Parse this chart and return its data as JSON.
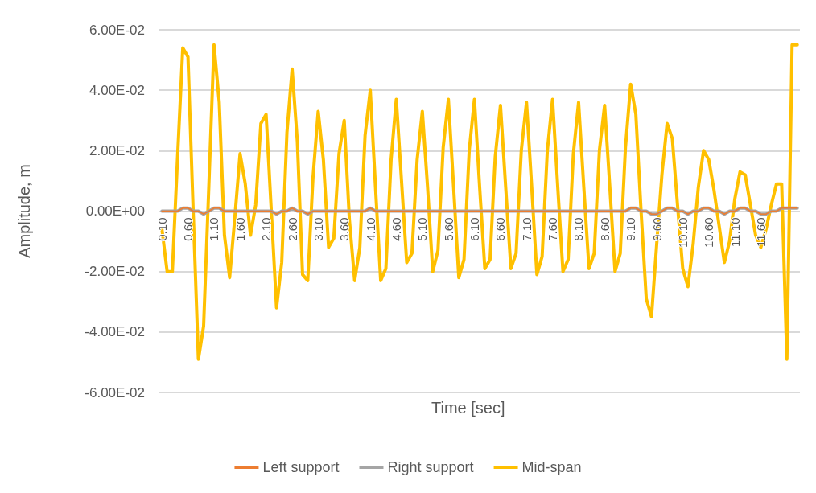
{
  "chart_data": {
    "type": "line",
    "xlabel": "Time [sec]",
    "ylabel": "Amplitude, m",
    "categories": [
      "0.10",
      null,
      null,
      null,
      null,
      "0.60",
      null,
      null,
      null,
      null,
      "1.10",
      null,
      null,
      null,
      null,
      "1.60",
      null,
      null,
      null,
      null,
      "2.10",
      null,
      null,
      null,
      null,
      "2.60",
      null,
      null,
      null,
      null,
      "3.10",
      null,
      null,
      null,
      null,
      "3.60",
      null,
      null,
      null,
      null,
      "4.10",
      null,
      null,
      null,
      null,
      "4.60",
      null,
      null,
      null,
      null,
      "5.10",
      null,
      null,
      null,
      null,
      "5.60",
      null,
      null,
      null,
      null,
      "6.10",
      null,
      null,
      null,
      null,
      "6.60",
      null,
      null,
      null,
      null,
      "7.10",
      null,
      null,
      null,
      null,
      "7.60",
      null,
      null,
      null,
      null,
      "8.10",
      null,
      null,
      null,
      null,
      "8.60",
      null,
      null,
      null,
      null,
      "9.10",
      null,
      null,
      null,
      null,
      "9.60",
      null,
      null,
      null,
      null,
      "10.10",
      null,
      null,
      null,
      null,
      "10.60",
      null,
      null,
      null,
      null,
      "11.10",
      null,
      null,
      null,
      null,
      "11.60",
      null,
      null,
      null,
      null,
      null,
      null,
      null
    ],
    "series": [
      {
        "name": "Left support",
        "color": "#ed7d31",
        "values": [
          0,
          0,
          0,
          0,
          0.001,
          0.001,
          0,
          0,
          -0.001,
          0,
          0.001,
          0.001,
          0,
          0,
          0,
          0,
          0,
          0,
          0,
          0,
          0,
          0,
          -0.001,
          0,
          0,
          0.001,
          0,
          0,
          -0.001,
          0,
          0,
          0,
          0,
          0,
          0,
          0,
          0,
          0,
          0,
          0,
          0.001,
          0,
          0,
          0,
          0,
          0,
          0,
          0,
          0,
          0,
          0,
          0,
          0,
          0,
          0,
          0,
          0,
          0,
          0,
          0,
          0,
          0,
          0,
          0,
          0,
          0,
          0,
          0,
          0,
          0,
          0,
          0,
          0,
          0,
          0,
          0,
          0,
          0,
          0,
          0,
          0,
          0,
          0,
          0,
          0,
          0,
          0,
          0,
          0,
          0,
          0.001,
          0.001,
          0,
          0,
          -0.001,
          -0.001,
          0,
          0.001,
          0.001,
          0,
          0,
          -0.001,
          0,
          0,
          0.001,
          0.001,
          0,
          0,
          -0.001,
          0,
          0,
          0.001,
          0.001,
          0,
          0,
          -0.001,
          -0.001,
          0,
          0,
          0.001,
          0.001,
          0.001,
          0.001
        ]
      },
      {
        "name": "Right support",
        "color": "#a5a5a5",
        "values": [
          0,
          0,
          0,
          0,
          0.001,
          0.001,
          0,
          0,
          -0.001,
          0,
          0.001,
          0.001,
          0,
          0,
          0,
          0,
          0,
          0,
          0,
          0,
          0,
          0,
          -0.001,
          0,
          0,
          0.001,
          0,
          0,
          -0.001,
          0,
          0,
          0,
          0,
          0,
          0,
          0,
          0,
          0,
          0,
          0,
          0.001,
          0,
          0,
          0,
          0,
          0,
          0,
          0,
          0,
          0,
          0,
          0,
          0,
          0,
          0,
          0,
          0,
          0,
          0,
          0,
          0,
          0,
          0,
          0,
          0,
          0,
          0,
          0,
          0,
          0,
          0,
          0,
          0,
          0,
          0,
          0,
          0,
          0,
          0,
          0,
          0,
          0,
          0,
          0,
          0,
          0,
          0,
          0,
          0,
          0,
          0.001,
          0.001,
          0,
          0,
          -0.001,
          -0.001,
          0,
          0.001,
          0.001,
          0,
          0,
          -0.001,
          0,
          0,
          0.001,
          0.001,
          0,
          0,
          -0.001,
          0,
          0,
          0.001,
          0.001,
          0,
          0,
          -0.001,
          -0.001,
          0,
          0,
          0.001,
          0.001,
          0.001,
          0.001
        ]
      },
      {
        "name": "Mid-span",
        "color": "#ffc000",
        "values": [
          -0.006,
          -0.02,
          -0.02,
          0.018,
          0.054,
          0.051,
          0,
          -0.049,
          -0.038,
          0.008,
          0.055,
          0.036,
          -0.008,
          -0.022,
          -0.002,
          0.019,
          0.009,
          -0.008,
          0.002,
          0.029,
          0.032,
          0,
          -0.032,
          -0.017,
          0.026,
          0.047,
          0.023,
          -0.021,
          -0.023,
          0.011,
          0.033,
          0.017,
          -0.012,
          -0.009,
          0.019,
          0.03,
          -0.003,
          -0.023,
          -0.012,
          0.025,
          0.04,
          0.008,
          -0.023,
          -0.019,
          0.017,
          0.037,
          0.01,
          -0.017,
          -0.014,
          0.017,
          0.033,
          0.008,
          -0.02,
          -0.013,
          0.021,
          0.037,
          0.008,
          -0.022,
          -0.016,
          0.02,
          0.037,
          0.008,
          -0.019,
          -0.016,
          0.018,
          0.035,
          0.008,
          -0.019,
          -0.014,
          0.02,
          0.036,
          0.008,
          -0.021,
          -0.015,
          0.02,
          0.037,
          0.008,
          -0.02,
          -0.016,
          0.019,
          0.036,
          0.008,
          -0.019,
          -0.014,
          0.02,
          0.035,
          0.008,
          -0.02,
          -0.014,
          0.021,
          0.042,
          0.032,
          0,
          -0.029,
          -0.035,
          -0.011,
          0.012,
          0.029,
          0.024,
          0.002,
          -0.019,
          -0.025,
          -0.011,
          0.008,
          0.02,
          0.017,
          0.007,
          -0.005,
          -0.017,
          -0.01,
          0.004,
          0.013,
          0.012,
          0.002,
          -0.008,
          -0.012,
          -0.006,
          0.002,
          0.009,
          0.009,
          -0.049,
          0.055,
          0.055
        ]
      }
    ],
    "ylim": [
      -0.06,
      0.06
    ],
    "yticks": [
      {
        "value": -0.06,
        "label": "-6.00E-02"
      },
      {
        "value": -0.04,
        "label": "-4.00E-02"
      },
      {
        "value": -0.02,
        "label": "-2.00E-02"
      },
      {
        "value": 0,
        "label": "0.00E+00"
      },
      {
        "value": 0.02,
        "label": "2.00E-02"
      },
      {
        "value": 0.04,
        "label": "4.00E-02"
      },
      {
        "value": 0.06,
        "label": "6.00E-02"
      }
    ],
    "grid": "y",
    "legend": "bottom",
    "marker": "none",
    "line_style": "solid"
  }
}
